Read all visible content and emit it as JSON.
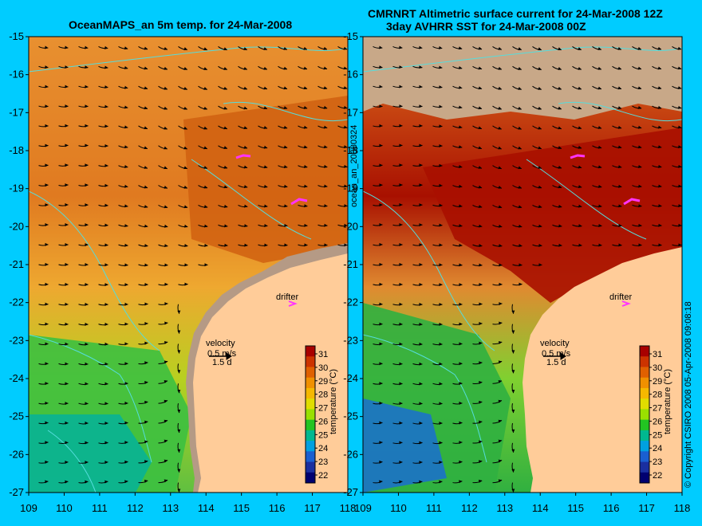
{
  "left_panel": {
    "title": "OceanMAPS_an 5m temp. for 24-Mar-2008",
    "velocity_label": "velocity",
    "velocity_scale": "0.5 m/s",
    "velocity_time": "1.5 d",
    "drifter_label": "drifter",
    "colorbar_label": "temperature (°C)"
  },
  "right_panel": {
    "title_line1": "CMRNRT Altimetric surface current for 24-Mar-2008 12Z",
    "title_line2": "3day AVHRR SST for 24-Mar-2008 00Z",
    "velocity_label": "velocity",
    "velocity_scale": "0.5 m/s",
    "velocity_time": "1.5 d",
    "drifter_label": "drifter",
    "colorbar_label": "temperature (°C)"
  },
  "side_labels": {
    "middle": "ocean_an_20080324",
    "right": "© Copyright CSIRO 2008   05-Apr-2008 09:08:18"
  },
  "axes": {
    "x_ticks": [
      "109",
      "110",
      "111",
      "112",
      "113",
      "114",
      "115",
      "116",
      "117",
      "118"
    ],
    "y_ticks": [
      "-15",
      "-16",
      "-17",
      "-18",
      "-19",
      "-20",
      "-21",
      "-22",
      "-23",
      "-24",
      "-25",
      "-26",
      "-27"
    ]
  },
  "colorbar": {
    "ticks": [
      "31",
      "30",
      "29",
      "28",
      "27",
      "26",
      "25",
      "24",
      "23",
      "22"
    ],
    "colors": [
      "#a80000",
      "#cc3300",
      "#e06000",
      "#f09000",
      "#f5b800",
      "#e0dd00",
      "#9ae000",
      "#22c422",
      "#00b890",
      "#00a0e0",
      "#1a5fd0",
      "#1a2fa0",
      "#000070"
    ]
  },
  "colors": {
    "background": "#00ccff",
    "land": "#ffcc99",
    "no_data": "#c8a888",
    "coast_shelf": "#b59a85",
    "bathymetry": "#55dddd",
    "drifter": "#ff33ff"
  }
}
